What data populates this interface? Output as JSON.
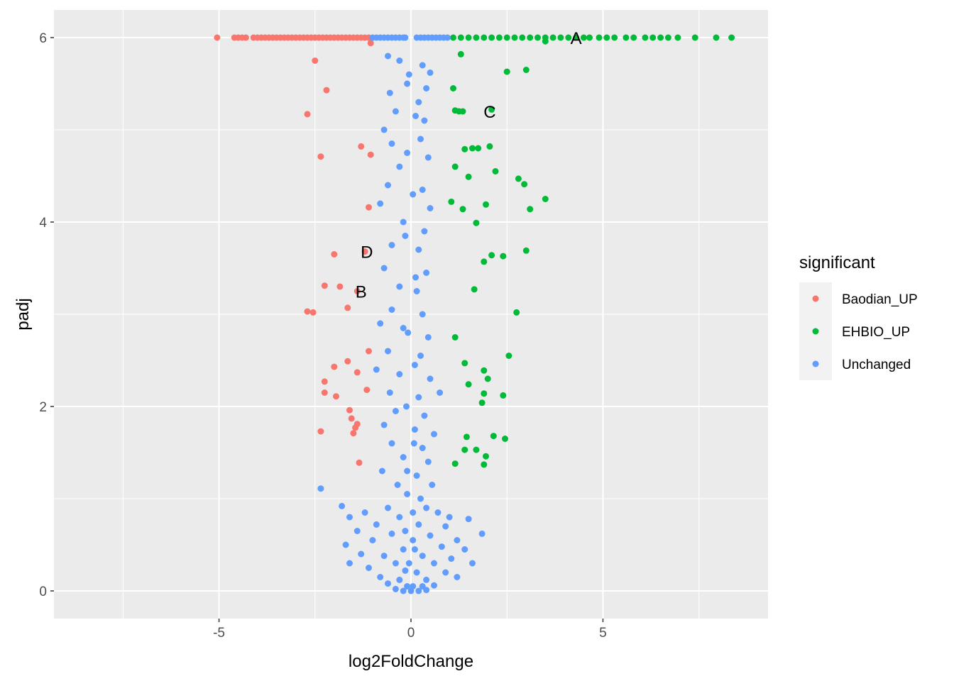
{
  "chart_data": {
    "type": "scatter",
    "title": "",
    "xlabel": "log2FoldChange",
    "ylabel": "padj",
    "xlim": [
      -9.3,
      9.3
    ],
    "ylim": [
      -0.3,
      6.3
    ],
    "x_ticks": [
      -5,
      0,
      5
    ],
    "x_tick_labels": [
      "-5",
      "0",
      "5"
    ],
    "y_ticks": [
      0,
      2,
      4,
      6
    ],
    "y_tick_labels": [
      "0",
      "2",
      "4",
      "6"
    ],
    "grid": true,
    "legend": {
      "title": "significant",
      "position": "right",
      "entries": [
        "Baodian_UP",
        "EHBIO_UP",
        "Unchanged"
      ]
    },
    "colors": {
      "Baodian_UP": "#F8766D",
      "EHBIO_UP": "#00BA38",
      "Unchanged": "#619CFF",
      "panel": "#EBEBEB",
      "grid_major": "#FFFFFF"
    },
    "series": [
      {
        "name": "Baodian_UP",
        "points": [
          [
            -5.05,
            6
          ],
          [
            -4.6,
            6
          ],
          [
            -4.5,
            6
          ],
          [
            -4.4,
            6
          ],
          [
            -4.3,
            6
          ],
          [
            -4.1,
            6
          ],
          [
            -4.0,
            6
          ],
          [
            -3.9,
            6
          ],
          [
            -3.8,
            6
          ],
          [
            -3.7,
            6
          ],
          [
            -3.6,
            6
          ],
          [
            -3.5,
            6
          ],
          [
            -3.4,
            6
          ],
          [
            -3.3,
            6
          ],
          [
            -3.2,
            6
          ],
          [
            -3.1,
            6
          ],
          [
            -3.0,
            6
          ],
          [
            -2.9,
            6
          ],
          [
            -2.8,
            6
          ],
          [
            -2.7,
            6
          ],
          [
            -2.6,
            6
          ],
          [
            -2.5,
            6
          ],
          [
            -2.4,
            6
          ],
          [
            -2.3,
            6
          ],
          [
            -2.2,
            6
          ],
          [
            -2.1,
            6
          ],
          [
            -2.0,
            6
          ],
          [
            -1.9,
            6
          ],
          [
            -1.8,
            6
          ],
          [
            -1.7,
            6
          ],
          [
            -1.6,
            6
          ],
          [
            -1.5,
            6
          ],
          [
            -1.4,
            6
          ],
          [
            -1.3,
            6
          ],
          [
            -1.2,
            6
          ],
          [
            -1.1,
            6
          ],
          [
            -1.05,
            5.94
          ],
          [
            -2.5,
            5.75
          ],
          [
            -2.2,
            5.43
          ],
          [
            -2.7,
            5.17
          ],
          [
            -1.3,
            4.82
          ],
          [
            -2.35,
            4.71
          ],
          [
            -1.05,
            4.73
          ],
          [
            -1.1,
            4.16
          ],
          [
            -1.2,
            3.68
          ],
          [
            -2.0,
            3.65
          ],
          [
            -2.25,
            3.31
          ],
          [
            -1.85,
            3.3
          ],
          [
            -1.4,
            3.25
          ],
          [
            -2.7,
            3.03
          ],
          [
            -2.55,
            3.02
          ],
          [
            -1.65,
            3.07
          ],
          [
            -1.1,
            2.6
          ],
          [
            -1.65,
            2.49
          ],
          [
            -2.0,
            2.43
          ],
          [
            -1.4,
            2.37
          ],
          [
            -2.25,
            2.27
          ],
          [
            -2.25,
            2.15
          ],
          [
            -1.15,
            2.18
          ],
          [
            -1.95,
            2.11
          ],
          [
            -1.6,
            1.96
          ],
          [
            -1.55,
            1.87
          ],
          [
            -1.4,
            1.81
          ],
          [
            -1.45,
            1.77
          ],
          [
            -1.5,
            1.71
          ],
          [
            -2.35,
            1.73
          ],
          [
            -1.35,
            1.39
          ]
        ]
      },
      {
        "name": "EHBIO_UP",
        "points": [
          [
            1.1,
            6
          ],
          [
            1.3,
            6
          ],
          [
            1.5,
            6
          ],
          [
            1.7,
            6
          ],
          [
            1.9,
            6
          ],
          [
            2.1,
            6
          ],
          [
            2.3,
            6
          ],
          [
            2.5,
            6
          ],
          [
            2.7,
            6
          ],
          [
            2.9,
            6
          ],
          [
            3.1,
            6
          ],
          [
            3.3,
            6
          ],
          [
            3.5,
            6
          ],
          [
            3.7,
            6
          ],
          [
            3.9,
            6
          ],
          [
            4.1,
            6
          ],
          [
            4.3,
            6
          ],
          [
            4.5,
            6
          ],
          [
            4.65,
            6
          ],
          [
            4.9,
            6
          ],
          [
            5.1,
            6
          ],
          [
            5.3,
            6
          ],
          [
            5.6,
            6
          ],
          [
            5.8,
            6
          ],
          [
            6.1,
            6
          ],
          [
            6.3,
            6
          ],
          [
            6.5,
            6
          ],
          [
            6.7,
            6
          ],
          [
            6.95,
            6
          ],
          [
            7.4,
            6
          ],
          [
            7.95,
            6
          ],
          [
            8.35,
            6
          ],
          [
            3.5,
            5.96
          ],
          [
            1.3,
            5.82
          ],
          [
            2.5,
            5.63
          ],
          [
            3.0,
            5.65
          ],
          [
            1.1,
            5.45
          ],
          [
            1.25,
            5.2
          ],
          [
            1.15,
            5.21
          ],
          [
            1.35,
            5.2
          ],
          [
            2.1,
            5.22
          ],
          [
            1.4,
            4.79
          ],
          [
            1.6,
            4.8
          ],
          [
            1.75,
            4.8
          ],
          [
            2.05,
            4.82
          ],
          [
            1.15,
            4.6
          ],
          [
            2.2,
            4.55
          ],
          [
            1.5,
            4.49
          ],
          [
            2.8,
            4.47
          ],
          [
            2.95,
            4.41
          ],
          [
            1.05,
            4.22
          ],
          [
            1.35,
            4.14
          ],
          [
            1.95,
            4.19
          ],
          [
            3.5,
            4.25
          ],
          [
            3.1,
            4.14
          ],
          [
            1.7,
            3.99
          ],
          [
            3.0,
            3.69
          ],
          [
            2.1,
            3.64
          ],
          [
            2.4,
            3.63
          ],
          [
            1.9,
            3.57
          ],
          [
            1.65,
            3.27
          ],
          [
            2.75,
            3.02
          ],
          [
            1.15,
            2.75
          ],
          [
            2.55,
            2.55
          ],
          [
            1.4,
            2.47
          ],
          [
            1.9,
            2.39
          ],
          [
            2.0,
            2.3
          ],
          [
            1.5,
            2.24
          ],
          [
            1.9,
            2.14
          ],
          [
            2.4,
            2.12
          ],
          [
            1.85,
            2.04
          ],
          [
            1.45,
            1.67
          ],
          [
            2.15,
            1.68
          ],
          [
            2.45,
            1.65
          ],
          [
            1.4,
            1.53
          ],
          [
            1.7,
            1.53
          ],
          [
            1.95,
            1.46
          ],
          [
            1.9,
            1.37
          ],
          [
            1.15,
            1.38
          ]
        ]
      },
      {
        "name": "Unchanged",
        "points": [
          [
            -1.0,
            6
          ],
          [
            -0.9,
            6
          ],
          [
            -0.8,
            6
          ],
          [
            -0.7,
            6
          ],
          [
            -0.6,
            6
          ],
          [
            -0.5,
            6
          ],
          [
            -0.4,
            6
          ],
          [
            -0.3,
            6
          ],
          [
            -0.2,
            6
          ],
          [
            -0.15,
            6
          ],
          [
            0.15,
            6
          ],
          [
            0.25,
            6
          ],
          [
            0.35,
            6
          ],
          [
            0.45,
            6
          ],
          [
            0.55,
            6
          ],
          [
            0.65,
            6
          ],
          [
            0.75,
            6
          ],
          [
            0.85,
            6
          ],
          [
            0.95,
            6
          ],
          [
            -0.6,
            5.8
          ],
          [
            -0.3,
            5.75
          ],
          [
            0.3,
            5.7
          ],
          [
            0.5,
            5.62
          ],
          [
            -0.55,
            5.4
          ],
          [
            -0.1,
            5.5
          ],
          [
            0.4,
            5.45
          ],
          [
            -0.4,
            5.2
          ],
          [
            0.2,
            5.3
          ],
          [
            -0.7,
            5.0
          ],
          [
            0.35,
            5.1
          ],
          [
            -0.5,
            4.85
          ],
          [
            0.25,
            4.9
          ],
          [
            -0.3,
            4.6
          ],
          [
            0.45,
            4.7
          ],
          [
            -0.6,
            4.4
          ],
          [
            0.3,
            4.35
          ],
          [
            -0.8,
            4.2
          ],
          [
            0.5,
            4.15
          ],
          [
            -0.2,
            4.0
          ],
          [
            0.35,
            3.9
          ],
          [
            -0.5,
            3.75
          ],
          [
            0.2,
            3.7
          ],
          [
            -0.7,
            3.5
          ],
          [
            0.4,
            3.45
          ],
          [
            -0.3,
            3.3
          ],
          [
            0.15,
            3.25
          ],
          [
            -0.5,
            3.05
          ],
          [
            0.3,
            3.0
          ],
          [
            -0.8,
            2.9
          ],
          [
            -0.2,
            2.85
          ],
          [
            0.45,
            2.75
          ],
          [
            -0.6,
            2.6
          ],
          [
            0.25,
            2.55
          ],
          [
            -0.9,
            2.4
          ],
          [
            -0.3,
            2.35
          ],
          [
            0.5,
            2.3
          ],
          [
            -0.55,
            2.15
          ],
          [
            0.2,
            2.1
          ],
          [
            0.75,
            2.15
          ],
          [
            -0.4,
            1.95
          ],
          [
            0.35,
            1.9
          ],
          [
            -0.7,
            1.8
          ],
          [
            0.1,
            1.75
          ],
          [
            0.6,
            1.7
          ],
          [
            -0.5,
            1.6
          ],
          [
            0.3,
            1.55
          ],
          [
            -0.2,
            1.45
          ],
          [
            0.45,
            1.4
          ],
          [
            -0.75,
            1.3
          ],
          [
            0.15,
            1.25
          ],
          [
            -0.35,
            1.15
          ],
          [
            0.55,
            1.15
          ],
          [
            -2.35,
            1.11
          ],
          [
            -0.1,
            1.05
          ],
          [
            0.25,
            1.0
          ],
          [
            -1.8,
            0.92
          ],
          [
            -0.6,
            0.9
          ],
          [
            0.4,
            0.9
          ],
          [
            -1.2,
            0.85
          ],
          [
            -1.6,
            0.8
          ],
          [
            -0.3,
            0.8
          ],
          [
            0.7,
            0.85
          ],
          [
            1.0,
            0.8
          ],
          [
            1.5,
            0.78
          ],
          [
            -0.9,
            0.72
          ],
          [
            0.2,
            0.72
          ],
          [
            0.9,
            0.7
          ],
          [
            -1.4,
            0.65
          ],
          [
            -0.5,
            0.62
          ],
          [
            0.5,
            0.6
          ],
          [
            -1.0,
            0.55
          ],
          [
            0.05,
            0.55
          ],
          [
            1.2,
            0.55
          ],
          [
            1.85,
            0.62
          ],
          [
            -1.7,
            0.5
          ],
          [
            -0.2,
            0.45
          ],
          [
            0.8,
            0.48
          ],
          [
            1.4,
            0.45
          ],
          [
            -1.3,
            0.4
          ],
          [
            -0.7,
            0.38
          ],
          [
            0.3,
            0.38
          ],
          [
            1.05,
            0.35
          ],
          [
            -1.6,
            0.3
          ],
          [
            -0.4,
            0.3
          ],
          [
            0.6,
            0.3
          ],
          [
            1.6,
            0.3
          ],
          [
            -1.1,
            0.25
          ],
          [
            -0.15,
            0.22
          ],
          [
            0.15,
            0.2
          ],
          [
            0.9,
            0.2
          ],
          [
            -0.8,
            0.15
          ],
          [
            -0.3,
            0.12
          ],
          [
            0.4,
            0.12
          ],
          [
            1.2,
            0.15
          ],
          [
            -0.6,
            0.08
          ],
          [
            -0.1,
            0.05
          ],
          [
            0.05,
            0.05
          ],
          [
            0.3,
            0.05
          ],
          [
            0.6,
            0.06
          ],
          [
            -0.4,
            0.02
          ],
          [
            -0.2,
            0.0
          ],
          [
            0.0,
            0.0
          ],
          [
            0.2,
            0.0
          ],
          [
            0.4,
            0.01
          ],
          [
            -0.05,
            0.3
          ],
          [
            0.1,
            0.45
          ],
          [
            -0.15,
            0.65
          ],
          [
            0.05,
            0.85
          ],
          [
            -0.1,
            1.3
          ],
          [
            0.08,
            1.6
          ],
          [
            -0.12,
            2.0
          ],
          [
            0.1,
            2.45
          ],
          [
            -0.08,
            2.8
          ],
          [
            0.12,
            3.4
          ],
          [
            -0.15,
            3.85
          ],
          [
            0.05,
            4.3
          ],
          [
            -0.1,
            4.75
          ],
          [
            0.12,
            5.15
          ],
          [
            -0.05,
            5.6
          ]
        ]
      }
    ],
    "annotations": [
      {
        "label": "A",
        "x": 4.3,
        "y": 6
      },
      {
        "label": "C",
        "x": 2.05,
        "y": 5.2
      },
      {
        "label": "D",
        "x": -1.15,
        "y": 3.68
      },
      {
        "label": "B",
        "x": -1.3,
        "y": 3.25
      }
    ]
  }
}
